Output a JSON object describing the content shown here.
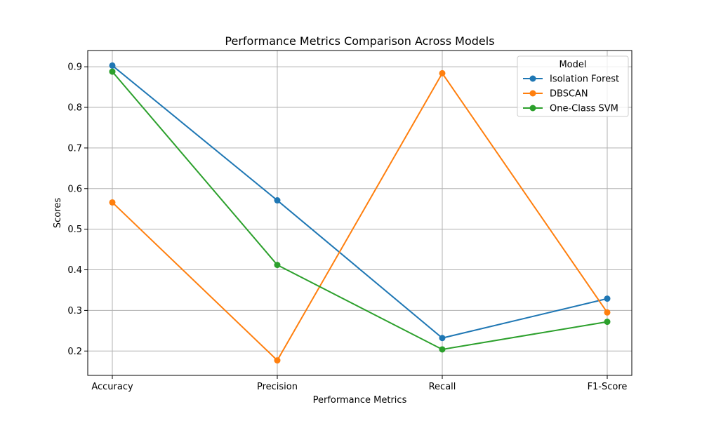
{
  "chart_data": {
    "type": "line",
    "title": "Performance Metrics Comparison Across Models",
    "xlabel": "Performance Metrics",
    "ylabel": "Scores",
    "categories": [
      "Accuracy",
      "Precision",
      "Recall",
      "F1-Score"
    ],
    "ylim": [
      0.14,
      0.94
    ],
    "yticks": [
      0.2,
      0.3,
      0.4,
      0.5,
      0.6,
      0.7,
      0.8,
      0.9
    ],
    "grid": true,
    "legend": {
      "title": "Model",
      "placement": "top-right"
    },
    "series": [
      {
        "name": "Isolation Forest",
        "color": "#1f77b4",
        "values": [
          0.903,
          0.571,
          0.232,
          0.329
        ]
      },
      {
        "name": "DBSCAN",
        "color": "#ff7f0e",
        "values": [
          0.566,
          0.177,
          0.884,
          0.295
        ]
      },
      {
        "name": "One-Class SVM",
        "color": "#2ca02c",
        "values": [
          0.888,
          0.412,
          0.204,
          0.272
        ]
      }
    ]
  }
}
